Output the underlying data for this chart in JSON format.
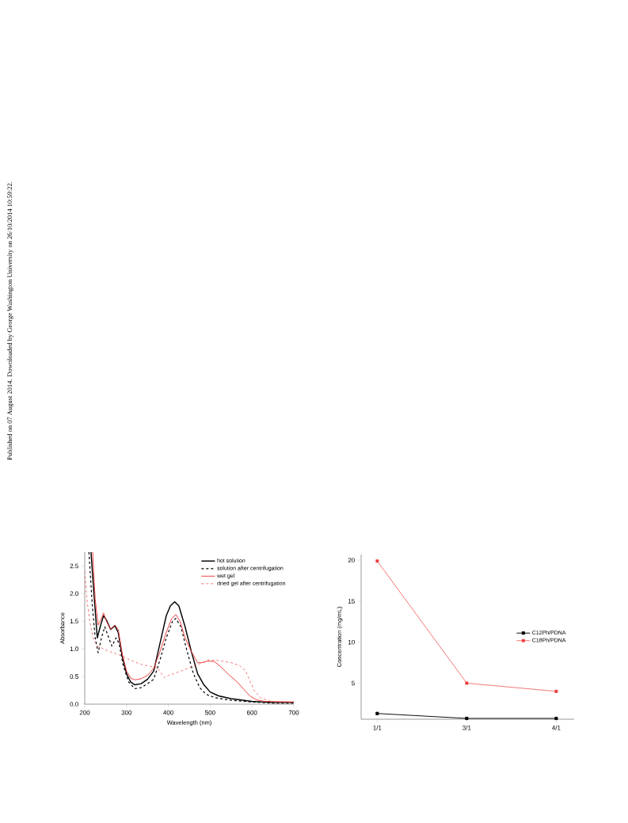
{
  "chart_data": [
    {
      "type": "line",
      "xlabel": "Wavelength (nm)",
      "ylabel": "Absorbance",
      "xlim": [
        200,
        700
      ],
      "ylim": [
        0,
        2.75
      ],
      "xticks": [
        200,
        300,
        400,
        500,
        600,
        700
      ],
      "yticks": [
        {
          "value": 0,
          "label": "0.0"
        },
        {
          "value": 0.5,
          "label": "0.5"
        },
        {
          "value": 1,
          "label": "1.0"
        },
        {
          "value": 1.5,
          "label": "1.5"
        },
        {
          "value": 2,
          "label": "2.0"
        },
        {
          "value": 2.5,
          "label": "2.5"
        }
      ],
      "legend": "top right",
      "grid": false,
      "annotations": [
        "Published on 07 August 2014. Downloaded by George Washington University on 26/10/2014 10:59:22."
      ],
      "series": [
        {
          "name": "hot solution",
          "color": "#000000",
          "line_style": "solid",
          "x": [
            215,
            222,
            230,
            237,
            245,
            252,
            262,
            272,
            280,
            290,
            300,
            310,
            320,
            335,
            350,
            365,
            380,
            395,
            405,
            415,
            425,
            440,
            455,
            470,
            485,
            500,
            520,
            550,
            600,
            650,
            700
          ],
          "values": [
            2.75,
            2.0,
            1.2,
            1.4,
            1.6,
            1.52,
            1.35,
            1.42,
            1.3,
            0.85,
            0.55,
            0.4,
            0.35,
            0.37,
            0.45,
            0.6,
            1.1,
            1.6,
            1.78,
            1.85,
            1.78,
            1.4,
            0.95,
            0.55,
            0.35,
            0.22,
            0.15,
            0.1,
            0.05,
            0.03,
            0.03
          ]
        },
        {
          "name": "solution after centrifugation",
          "color": "#000000",
          "line_style": "dashed",
          "x": [
            210,
            218,
            225,
            232,
            240,
            248,
            255,
            265,
            275,
            282,
            292,
            305,
            320,
            335,
            350,
            365,
            380,
            395,
            410,
            418,
            430,
            445,
            460,
            475,
            490,
            510,
            550,
            600,
            650,
            700
          ],
          "values": [
            2.75,
            1.8,
            1.2,
            0.93,
            1.2,
            1.4,
            1.25,
            1.05,
            1.2,
            1.1,
            0.7,
            0.4,
            0.28,
            0.3,
            0.37,
            0.45,
            0.8,
            1.2,
            1.5,
            1.55,
            1.4,
            0.95,
            0.55,
            0.3,
            0.18,
            0.12,
            0.07,
            0.04,
            0.02,
            0.02
          ]
        },
        {
          "name": "wet gel",
          "color": "#ee3b3b",
          "line_style": "solid",
          "x": [
            219,
            225,
            232,
            240,
            245,
            252,
            262,
            272,
            280,
            290,
            300,
            310,
            320,
            335,
            350,
            365,
            380,
            395,
            408,
            418,
            428,
            440,
            455,
            470,
            480,
            495,
            510,
            525,
            545,
            565,
            580,
            595,
            610,
            630,
            700
          ],
          "values": [
            2.75,
            1.9,
            1.43,
            1.55,
            1.65,
            1.5,
            1.35,
            1.43,
            1.35,
            0.9,
            0.6,
            0.47,
            0.44,
            0.46,
            0.52,
            0.65,
            0.95,
            1.3,
            1.55,
            1.62,
            1.5,
            1.2,
            0.95,
            0.75,
            0.75,
            0.78,
            0.77,
            0.68,
            0.53,
            0.4,
            0.27,
            0.15,
            0.08,
            0.05,
            0.04
          ]
        },
        {
          "name": "dried gel after centrifugation",
          "color": "#ee3b3b",
          "line_style": "dashed",
          "x": [
            200,
            205,
            212,
            220,
            230,
            245,
            260,
            280,
            300,
            320,
            340,
            360,
            372,
            382,
            390,
            400,
            420,
            450,
            475,
            495,
            520,
            550,
            570,
            585,
            595,
            605,
            620,
            640,
            660,
            700
          ],
          "values": [
            2.4,
            1.9,
            1.5,
            1.2,
            1.05,
            1.0,
            0.95,
            0.9,
            0.83,
            0.76,
            0.71,
            0.68,
            0.67,
            0.57,
            0.48,
            0.52,
            0.57,
            0.66,
            0.73,
            0.8,
            0.79,
            0.75,
            0.7,
            0.6,
            0.42,
            0.25,
            0.12,
            0.06,
            0.04,
            0.04
          ]
        }
      ]
    },
    {
      "type": "line",
      "ylabel": "Concentration (mg/mL)",
      "categories": [
        "1/1",
        "3/1",
        "4/1"
      ],
      "ylim": [
        0.6,
        20.7
      ],
      "yticks": [
        5,
        10,
        15,
        20
      ],
      "legend": "right",
      "grid": false,
      "marker": "square",
      "series": [
        {
          "name": "C12Ph/PDNA",
          "color": "#000000",
          "values": [
            1.3,
            0.7,
            0.7
          ]
        },
        {
          "name": "C18Ph/PDNA",
          "color": "#ee3b3b",
          "values": [
            19.9,
            5.0,
            4.0
          ]
        }
      ]
    }
  ]
}
